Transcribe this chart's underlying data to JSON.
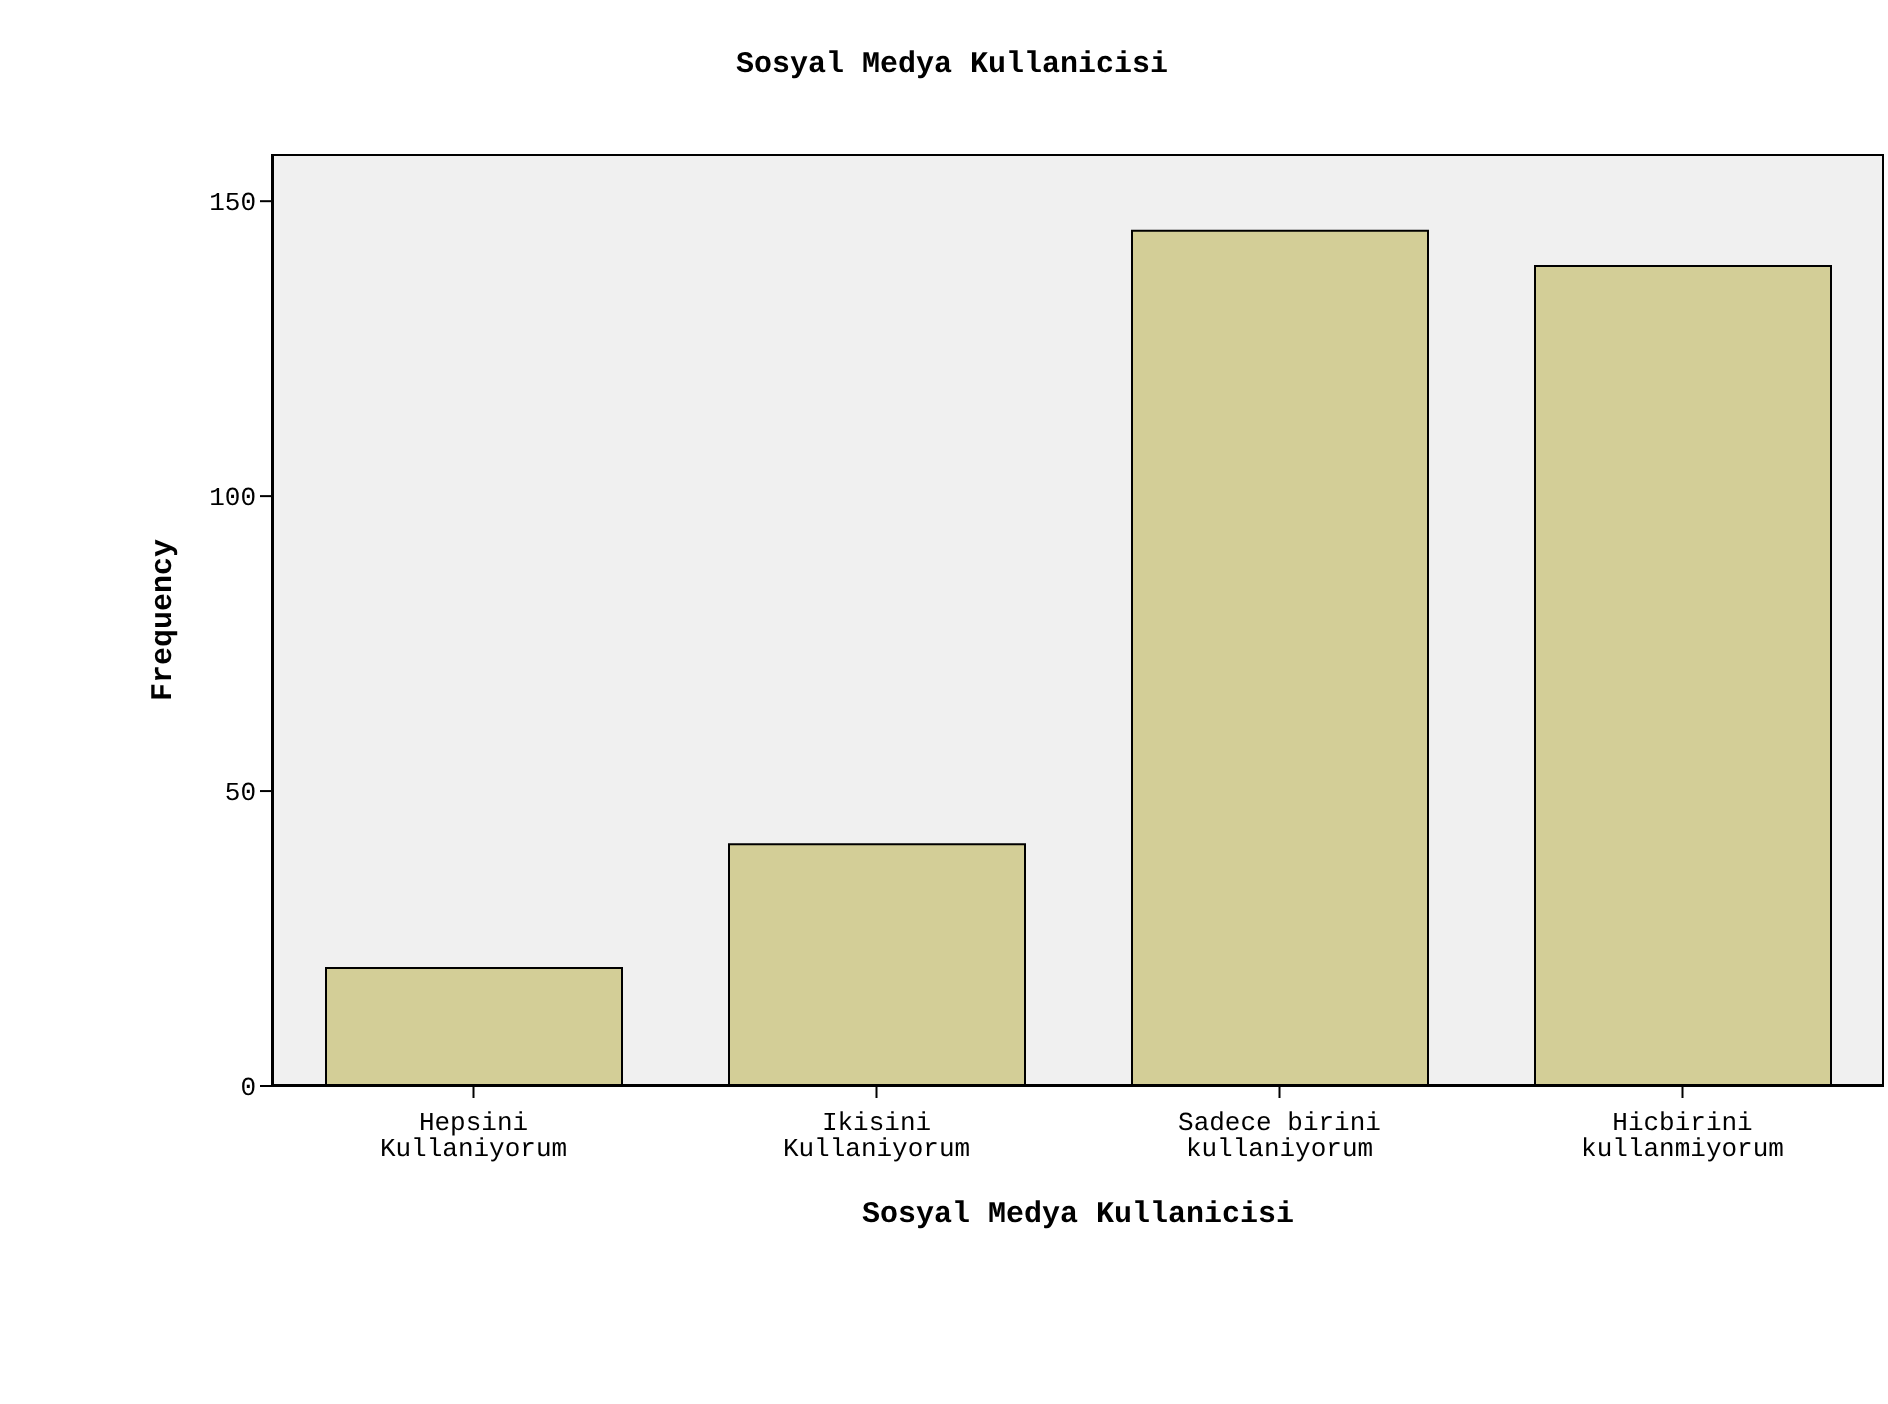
{
  "chart_data": {
    "type": "bar",
    "title": "Sosyal Medya Kullanicisi",
    "xlabel": "Sosyal Medya Kullanicisi",
    "ylabel": "Frequency",
    "categories": [
      "Hepsini\nKullaniyorum",
      "Ikisini\nKullaniyorum",
      "Sadece birini\nkullaniyorum",
      "Hicbirini\nkullanmiyorum"
    ],
    "values": [
      20,
      41,
      145,
      139
    ],
    "color": "#d3ce97",
    "ylim": [
      0,
      158
    ],
    "yticks": [
      0,
      50,
      100,
      150
    ],
    "grid": false
  }
}
